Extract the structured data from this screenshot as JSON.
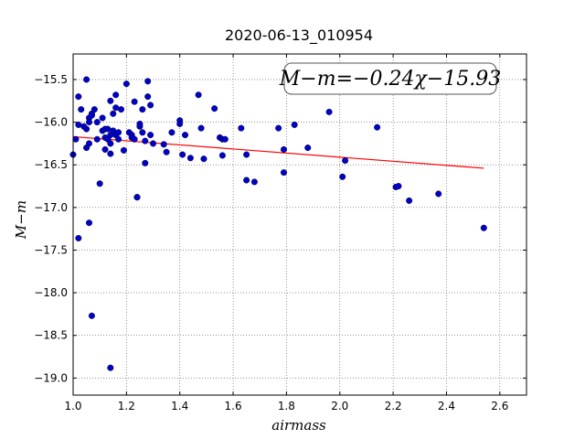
{
  "chart_data": {
    "type": "scatter",
    "title": "2020-06-13_010954",
    "xlabel": "airmass",
    "ylabel": "M−m",
    "xlim": [
      1.0,
      2.7
    ],
    "ylim": [
      -19.2,
      -15.2
    ],
    "y_inverted": true,
    "grid": true,
    "x_ticks": [
      "1.0",
      "1.2",
      "1.4",
      "1.6",
      "1.8",
      "2.0",
      "2.2",
      "2.4",
      "2.6"
    ],
    "x_tick_values": [
      1.0,
      1.2,
      1.4,
      1.6,
      1.8,
      2.0,
      2.2,
      2.4,
      2.6
    ],
    "y_ticks": [
      "−15.5",
      "−16.0",
      "−16.5",
      "−17.0",
      "−17.5",
      "−18.0",
      "−18.5",
      "−19.0"
    ],
    "y_tick_values": [
      -15.5,
      -16.0,
      -16.5,
      -17.0,
      -17.5,
      -18.0,
      -18.5,
      -19.0
    ],
    "annotation": "M−m=−0.24χ−15.93",
    "fit": {
      "slope": -0.24,
      "intercept": -15.93,
      "x_range": [
        1.0,
        2.54
      ],
      "color": "#ff0000"
    },
    "point_color": "#0000cc",
    "series": [
      {
        "x": [
          1.0,
          1.01,
          1.02,
          1.02,
          1.03,
          1.04,
          1.05,
          1.05,
          1.05,
          1.06,
          1.06,
          1.06,
          1.07,
          1.07,
          1.08,
          1.09,
          1.09,
          1.1,
          1.11,
          1.11,
          1.12,
          1.12,
          1.12,
          1.13,
          1.13,
          1.14,
          1.14,
          1.14,
          1.14,
          1.15,
          1.15,
          1.16,
          1.16,
          1.16,
          1.17,
          1.17,
          1.18,
          1.19,
          1.2,
          1.21,
          1.22,
          1.22,
          1.23,
          1.23,
          1.24,
          1.25,
          1.25,
          1.26,
          1.26,
          1.27,
          1.27,
          1.28,
          1.28,
          1.29,
          1.29,
          1.3,
          1.34,
          1.35,
          1.37,
          1.4,
          1.4,
          1.41,
          1.42,
          1.44,
          1.47,
          1.48,
          1.49,
          1.53,
          1.55,
          1.56,
          1.56,
          1.57,
          1.63,
          1.65,
          1.65,
          1.68,
          1.77,
          1.79,
          1.79,
          1.83,
          1.88,
          1.96,
          2.01,
          2.02,
          2.14,
          2.21,
          2.22,
          2.26,
          2.37,
          2.54,
          1.07,
          1.14,
          1.24,
          1.06,
          1.02
        ],
        "y": [
          -16.38,
          -16.2,
          -15.7,
          -16.03,
          -15.85,
          -16.05,
          -15.5,
          -16.08,
          -16.3,
          -15.95,
          -16.25,
          -16.0,
          -15.9,
          -15.92,
          -15.85,
          -16.2,
          -16.0,
          -16.72,
          -15.95,
          -16.1,
          -16.08,
          -16.18,
          -16.32,
          -16.08,
          -16.2,
          -15.75,
          -16.15,
          -16.25,
          -16.37,
          -15.9,
          -16.1,
          -15.83,
          -16.15,
          -15.68,
          -16.12,
          -16.2,
          -15.85,
          -16.33,
          -15.55,
          -16.12,
          -16.15,
          -16.18,
          -15.76,
          -16.2,
          -16.88,
          -16.05,
          -16.02,
          -15.85,
          -16.12,
          -16.22,
          -16.48,
          -15.7,
          -15.52,
          -15.8,
          -16.15,
          -16.25,
          -16.26,
          -16.35,
          -16.12,
          -15.98,
          -16.02,
          -16.38,
          -16.15,
          -16.42,
          -15.68,
          -16.07,
          -16.43,
          -15.84,
          -16.18,
          -16.39,
          -16.2,
          -16.2,
          -16.07,
          -16.38,
          -16.68,
          -16.7,
          -16.07,
          -16.32,
          -16.59,
          -16.03,
          -16.3,
          -15.88,
          -16.64,
          -16.45,
          -16.06,
          -16.76,
          -16.75,
          -16.92,
          -16.84,
          -17.24,
          -18.27,
          -18.88,
          -16.88,
          -17.18,
          -17.36
        ]
      }
    ]
  }
}
